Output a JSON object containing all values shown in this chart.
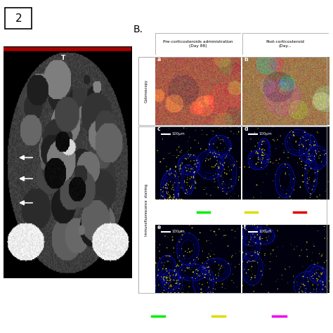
{
  "figure_label": "2",
  "panel_B_label": "B.",
  "bg_color": "#ffffff",
  "col1_header": "Pre-corticosteroids administration\n(Day 88)",
  "col2_header": "Post-corticosteroid\n(Day...",
  "row1_label": "Colonoscopy",
  "row2_label": "Immunofluorescence  staining",
  "sub_labels": [
    "a",
    "b",
    "c",
    "d",
    "e",
    "f"
  ],
  "scale_bar_text": "100μm",
  "legend_cd8_color": "#00ee00",
  "legend_cd4_color": "#dddd00",
  "legend_red_color": "#dd0000",
  "legend_magenta_color": "#ee00ee",
  "bg_if_color": "#000020",
  "border_color_ct": "#880000"
}
